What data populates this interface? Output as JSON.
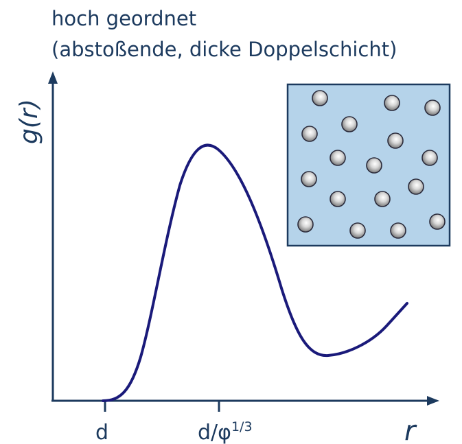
{
  "title": {
    "line1": "hoch geordnet",
    "line2": "(abstoßende, dicke Doppelschicht)"
  },
  "axes": {
    "ylabel_prefix": "g(",
    "ylabel_var": "r",
    "ylabel_suffix": ")",
    "xlabel": "r",
    "tick_d": "d",
    "tick_dphi_base": "d/φ",
    "tick_dphi_exp": "1/3"
  },
  "colors": {
    "axis": "#1c3a5e",
    "curve": "#1a1a7a",
    "inset_fill": "#b5d3ea",
    "inset_border": "#1c3a5e",
    "particle": "#9a9a9a"
  },
  "inset": {
    "description_icon": "particle-box-icon",
    "particle_count": 18
  }
}
